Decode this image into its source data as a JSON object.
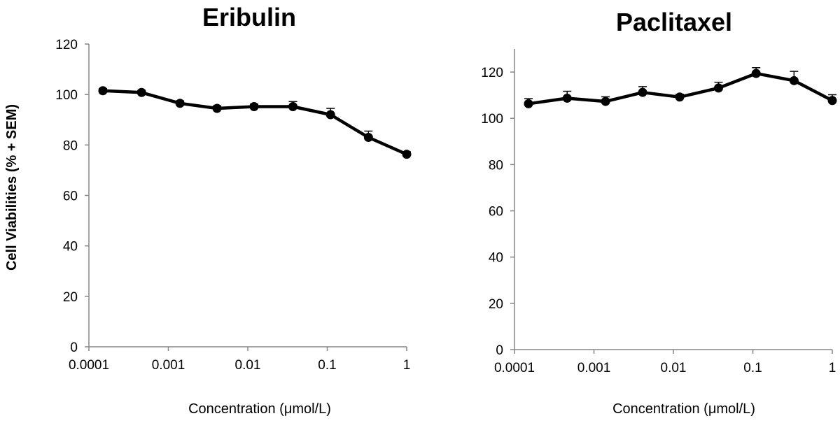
{
  "chart_data": [
    {
      "type": "line",
      "title": "Eribulin",
      "xlabel": "Concentration (μmol/L)",
      "ylabel": "Cell Viabilities (% + SEM)",
      "x_scale": "log",
      "xlim": [
        0.0001,
        1
      ],
      "ylim": [
        0,
        120
      ],
      "x_ticks": [
        "0.0001",
        "0.001",
        "0.01",
        "0.1",
        "1"
      ],
      "y_ticks": [
        "0",
        "20",
        "40",
        "60",
        "80",
        "100",
        "120"
      ],
      "grid": false,
      "series_color": "#000000",
      "x": [
        0.00015,
        0.00046,
        0.0014,
        0.0041,
        0.012,
        0.037,
        0.11,
        0.33,
        1.0
      ],
      "y": [
        101.5,
        100.8,
        96.5,
        94.5,
        95.2,
        95.2,
        92.0,
        83.0,
        76.3
      ],
      "sem": [
        0.8,
        0.8,
        1.0,
        1.0,
        1.0,
        2.0,
        2.5,
        2.5,
        1.0
      ]
    },
    {
      "type": "line",
      "title": "Paclitaxel",
      "xlabel": "Concentration (μmol/L)",
      "x_scale": "log",
      "xlim": [
        0.0001,
        1
      ],
      "ylim": [
        0,
        130
      ],
      "x_ticks": [
        "0.0001",
        "0.001",
        "0.01",
        "0.1",
        "1"
      ],
      "y_ticks": [
        "0",
        "20",
        "40",
        "60",
        "80",
        "100",
        "120"
      ],
      "grid": false,
      "series_color": "#000000",
      "x": [
        0.00015,
        0.00046,
        0.0014,
        0.0041,
        0.012,
        0.037,
        0.11,
        0.33,
        1.0
      ],
      "y": [
        106.3,
        108.7,
        107.3,
        111.2,
        109.2,
        113.1,
        119.4,
        116.3,
        107.7
      ],
      "sem": [
        2.2,
        3.0,
        2.0,
        2.5,
        1.2,
        2.5,
        2.5,
        4.0,
        2.5
      ]
    }
  ]
}
